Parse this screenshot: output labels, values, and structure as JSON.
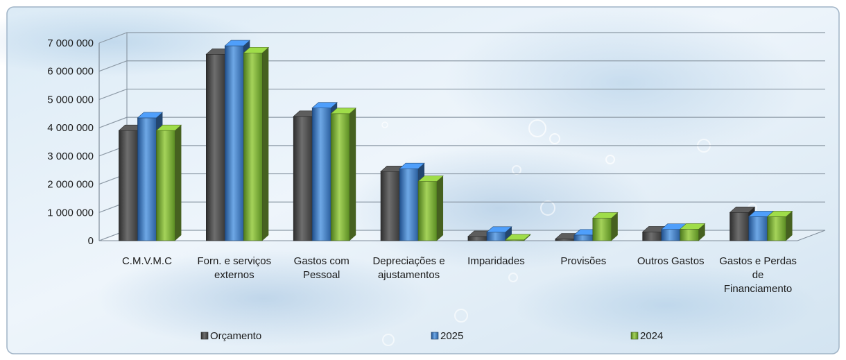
{
  "chart_data": {
    "type": "bar",
    "title": "",
    "xlabel": "",
    "ylabel": "",
    "ylim": [
      0,
      7000000
    ],
    "y_ticks": [
      0,
      1000000,
      2000000,
      3000000,
      4000000,
      5000000,
      6000000,
      7000000
    ],
    "y_tick_labels": [
      "0",
      "1 000 000",
      "2 000 000",
      "3 000 000",
      "4 000 000",
      "5 000 000",
      "6 000 000",
      "7 000 000"
    ],
    "grid": true,
    "legend_position": "bottom",
    "categories": [
      [
        "C.M.V.M.C"
      ],
      [
        "Forn. e serviços",
        "externos"
      ],
      [
        "Gastos com",
        "Pessoal"
      ],
      [
        "Depreciações e",
        "ajustamentos"
      ],
      [
        "Imparidades"
      ],
      [
        "Provisões"
      ],
      [
        "Outros Gastos"
      ],
      [
        "Gastos e Perdas",
        "de",
        "Financiamento"
      ]
    ],
    "series": [
      {
        "name": "Orçamento",
        "color": "#4a4a4a",
        "values": [
          3900000,
          6600000,
          4400000,
          2450000,
          150000,
          60000,
          310000,
          1000000
        ]
      },
      {
        "name": "2025",
        "color": "#3f7fc9",
        "values": [
          4350000,
          6900000,
          4700000,
          2550000,
          300000,
          200000,
          400000,
          850000
        ]
      },
      {
        "name": "2024",
        "color": "#7fb13a",
        "values": [
          3900000,
          6650000,
          4500000,
          2100000,
          30000,
          800000,
          410000,
          850000
        ]
      }
    ]
  }
}
